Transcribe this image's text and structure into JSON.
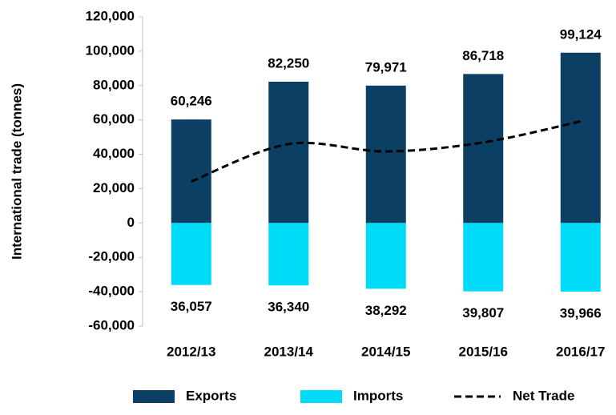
{
  "chart_data": {
    "type": "bar",
    "y_label": "International trade (tonnes)",
    "categories": [
      "2012/13",
      "2013/14",
      "2014/15",
      "2015/16",
      "2016/17"
    ],
    "series": [
      {
        "name": "Exports",
        "color": "#0b3f63",
        "values": [
          60246,
          82250,
          79971,
          86718,
          99124
        ],
        "value_labels": [
          "60,246",
          "82,250",
          "79,971",
          "86,718",
          "99,124"
        ]
      },
      {
        "name": "Imports",
        "color": "#00dcf8",
        "values": [
          -36057,
          -36340,
          -38292,
          -39807,
          -39966
        ],
        "value_labels": [
          "36,057",
          "36,340",
          "38,292",
          "39,807",
          "39,966"
        ]
      },
      {
        "name": "Net Trade",
        "type": "line",
        "color": "#000000",
        "dashed": true,
        "values": [
          24189,
          45910,
          41679,
          46911,
          59158
        ]
      }
    ],
    "ylim": [
      -60000,
      120000
    ],
    "yticks": [
      {
        "value": -60000,
        "label": "-60,000"
      },
      {
        "value": -40000,
        "label": "-40,000"
      },
      {
        "value": -20000,
        "label": "-20,000"
      },
      0,
      {
        "value": 20000,
        "label": "20,000"
      },
      {
        "value": 40000,
        "label": "40,000"
      },
      {
        "value": 60000,
        "label": "60,000"
      },
      {
        "value": 80000,
        "label": "80,000"
      },
      {
        "value": 100000,
        "label": "100,000"
      },
      {
        "value": 120000,
        "label": "120,000"
      }
    ],
    "legend": "bottom"
  }
}
